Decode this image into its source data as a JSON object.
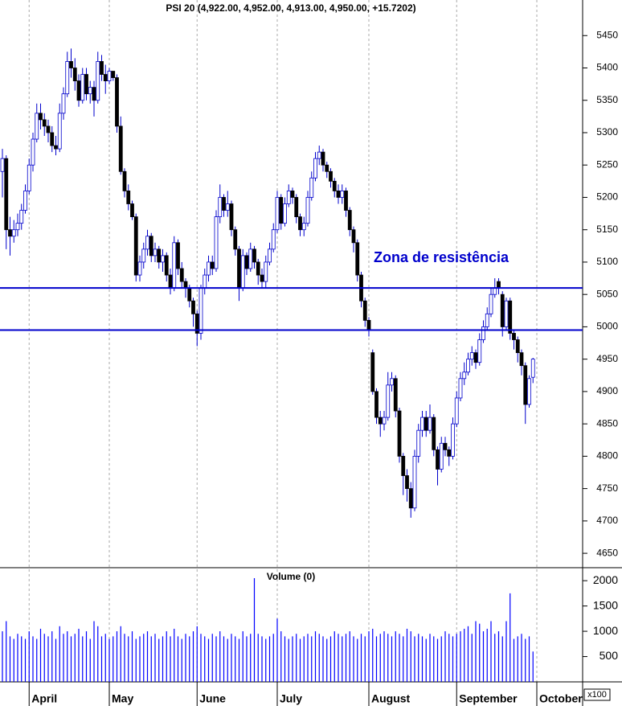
{
  "chart_data": [
    {
      "type": "candlestick",
      "title": "PSI 20 (4,922.00, 4,952.00, 4,913.00, 4,950.00, +15.7202)",
      "annotation": "Zona de resistência",
      "hlines": [
        5060,
        4995
      ],
      "hline_color": "#0000cc",
      "up_color": "#ffffff",
      "down_color": "#000000",
      "edge_color": "#0000cc",
      "ylim": [
        4629,
        5505
      ],
      "yticks": [
        4650,
        4700,
        4750,
        4800,
        4850,
        4900,
        4950,
        5000,
        5050,
        5100,
        5150,
        5200,
        5250,
        5300,
        5350,
        5400,
        5450
      ],
      "xticks": [
        {
          "value": 7,
          "label": "April"
        },
        {
          "value": 28,
          "label": "May"
        },
        {
          "value": 51,
          "label": "June"
        },
        {
          "value": 72,
          "label": "July"
        },
        {
          "value": 96,
          "label": "August"
        },
        {
          "value": 119,
          "label": "September"
        },
        {
          "value": 140,
          "label": "October"
        }
      ],
      "open": [
        5240,
        5260,
        5150,
        5140,
        5150,
        5160,
        5180,
        5210,
        5250,
        5290,
        5330,
        5320,
        5310,
        5300,
        5280,
        5275,
        5330,
        5360,
        5410,
        5400,
        5380,
        5350,
        5390,
        5360,
        5370,
        5350,
        5410,
        5390,
        5380,
        5395,
        5385,
        5310,
        5240,
        5210,
        5190,
        5170,
        5080,
        5100,
        5120,
        5140,
        5110,
        5120,
        5100,
        5110,
        5080,
        5060,
        5130,
        5090,
        5070,
        5060,
        5040,
        5020,
        4990,
        5060,
        5080,
        5100,
        5090,
        5170,
        5200,
        5180,
        5190,
        5150,
        5120,
        5060,
        5110,
        5090,
        5120,
        5100,
        5080,
        5070,
        5100,
        5120,
        5150,
        5200,
        5160,
        5190,
        5210,
        5200,
        5170,
        5150,
        5160,
        5200,
        5230,
        5260,
        5270,
        5250,
        5240,
        5225,
        5210,
        5200,
        5210,
        5180,
        5150,
        5130,
        5080,
        5040,
        5010,
        4960,
        4900,
        4860,
        4850,
        4860,
        4910,
        4920,
        4870,
        4800,
        4770,
        4750,
        4720,
        4800,
        4840,
        4860,
        4840,
        4860,
        4810,
        4780,
        4820,
        4810,
        4800,
        4850,
        4890,
        4920,
        4930,
        4950,
        4960,
        4945,
        4980,
        5000,
        5020,
        5050,
        5070,
        5050,
        5000,
        5040,
        4990,
        4980,
        4960,
        4940,
        4880,
        4922
      ],
      "high": [
        5275,
        5265,
        5170,
        5165,
        5175,
        5190,
        5220,
        5260,
        5300,
        5345,
        5345,
        5330,
        5320,
        5310,
        5295,
        5345,
        5370,
        5425,
        5430,
        5415,
        5390,
        5400,
        5400,
        5380,
        5380,
        5425,
        5420,
        5405,
        5400,
        5395,
        5390,
        5325,
        5245,
        5220,
        5195,
        5175,
        5110,
        5130,
        5150,
        5145,
        5130,
        5125,
        5120,
        5115,
        5090,
        5140,
        5135,
        5100,
        5075,
        5065,
        5045,
        5025,
        5065,
        5090,
        5110,
        5110,
        5180,
        5220,
        5205,
        5210,
        5195,
        5155,
        5125,
        5120,
        5115,
        5130,
        5125,
        5105,
        5090,
        5110,
        5130,
        5160,
        5210,
        5205,
        5200,
        5220,
        5215,
        5205,
        5175,
        5170,
        5210,
        5240,
        5270,
        5280,
        5275,
        5255,
        5245,
        5230,
        5220,
        5220,
        5215,
        5185,
        5155,
        5135,
        5085,
        5045,
        5015,
        4965,
        4905,
        4870,
        4870,
        4930,
        4930,
        4925,
        4875,
        4805,
        4780,
        4760,
        4810,
        4850,
        4870,
        4870,
        4880,
        4865,
        4815,
        4830,
        4830,
        4815,
        4860,
        4900,
        4930,
        4945,
        4960,
        4970,
        4965,
        4990,
        5010,
        5030,
        5060,
        5075,
        5075,
        5055,
        5045,
        5045,
        4995,
        4985,
        4965,
        4945,
        4925,
        4952
      ],
      "low": [
        5200,
        5120,
        5110,
        5130,
        5140,
        5150,
        5175,
        5205,
        5240,
        5285,
        5305,
        5295,
        5285,
        5270,
        5265,
        5270,
        5320,
        5355,
        5385,
        5365,
        5340,
        5345,
        5350,
        5345,
        5325,
        5345,
        5380,
        5360,
        5375,
        5380,
        5300,
        5235,
        5200,
        5180,
        5165,
        5070,
        5070,
        5090,
        5110,
        5100,
        5100,
        5090,
        5085,
        5070,
        5050,
        5055,
        5080,
        5060,
        5045,
        5030,
        5000,
        4970,
        4980,
        5050,
        5070,
        5080,
        5085,
        5160,
        5170,
        5170,
        5140,
        5110,
        5040,
        5055,
        5080,
        5085,
        5090,
        5065,
        5060,
        5060,
        5095,
        5115,
        5145,
        5150,
        5155,
        5185,
        5190,
        5160,
        5140,
        5140,
        5155,
        5195,
        5225,
        5250,
        5240,
        5230,
        5215,
        5200,
        5190,
        5190,
        5170,
        5140,
        5115,
        5070,
        5030,
        5000,
        4985,
        4895,
        4850,
        4830,
        4840,
        4855,
        4900,
        4860,
        4790,
        4740,
        4730,
        4705,
        4715,
        4790,
        4830,
        4830,
        4835,
        4800,
        4755,
        4775,
        4800,
        4785,
        4795,
        4845,
        4885,
        4910,
        4925,
        4940,
        4935,
        4940,
        4975,
        4995,
        5015,
        5045,
        5050,
        4985,
        4995,
        4980,
        4965,
        4945,
        4925,
        4850,
        4875,
        4913
      ],
      "close": [
        5260,
        5150,
        5140,
        5150,
        5160,
        5180,
        5210,
        5250,
        5290,
        5330,
        5320,
        5310,
        5300,
        5280,
        5275,
        5330,
        5360,
        5410,
        5400,
        5380,
        5350,
        5390,
        5360,
        5370,
        5350,
        5410,
        5390,
        5380,
        5395,
        5385,
        5310,
        5240,
        5210,
        5190,
        5170,
        5080,
        5100,
        5120,
        5140,
        5110,
        5120,
        5100,
        5110,
        5080,
        5060,
        5130,
        5090,
        5070,
        5060,
        5040,
        5020,
        4990,
        5060,
        5080,
        5100,
        5090,
        5170,
        5200,
        5180,
        5190,
        5150,
        5120,
        5060,
        5110,
        5090,
        5120,
        5100,
        5080,
        5070,
        5100,
        5120,
        5150,
        5200,
        5160,
        5190,
        5210,
        5200,
        5170,
        5150,
        5160,
        5200,
        5230,
        5260,
        5270,
        5250,
        5240,
        5225,
        5210,
        5200,
        5210,
        5180,
        5150,
        5130,
        5080,
        5040,
        5010,
        4995,
        4900,
        4860,
        4850,
        4860,
        4910,
        4920,
        4870,
        4800,
        4770,
        4750,
        4720,
        4800,
        4840,
        4860,
        4840,
        4860,
        4810,
        4780,
        4820,
        4810,
        4800,
        4850,
        4890,
        4920,
        4930,
        4950,
        4960,
        4945,
        4980,
        5000,
        5020,
        5050,
        5060,
        5060,
        5000,
        5040,
        4990,
        4980,
        4960,
        4940,
        4880,
        4920,
        4950
      ]
    },
    {
      "type": "bar",
      "title": "Volume (0)",
      "multiplier_label": "x100",
      "color": "#0000ff",
      "ylim": [
        0,
        2225
      ],
      "yticks": [
        500,
        1000,
        1500,
        2000
      ],
      "values": [
        1000,
        1200,
        900,
        850,
        950,
        900,
        850,
        1000,
        900,
        850,
        1050,
        950,
        900,
        1000,
        850,
        1100,
        950,
        1000,
        900,
        950,
        1050,
        900,
        1000,
        850,
        1200,
        1100,
        900,
        950,
        850,
        900,
        1000,
        1100,
        950,
        900,
        1000,
        850,
        900,
        950,
        1000,
        900,
        950,
        850,
        900,
        1000,
        900,
        1050,
        900,
        850,
        950,
        900,
        1000,
        1100,
        950,
        900,
        850,
        950,
        900,
        1000,
        900,
        850,
        950,
        900,
        850,
        1000,
        900,
        950,
        2050,
        950,
        900,
        850,
        900,
        950,
        1250,
        1000,
        900,
        850,
        900,
        950,
        850,
        900,
        950,
        900,
        1000,
        950,
        900,
        850,
        900,
        1000,
        950,
        900,
        950,
        1000,
        900,
        850,
        950,
        900,
        1000,
        1050,
        900,
        950,
        1000,
        950,
        900,
        1000,
        950,
        900,
        1050,
        1000,
        900,
        950,
        900,
        850,
        950,
        900,
        850,
        900,
        1000,
        950,
        900,
        950,
        1000,
        1050,
        1100,
        950,
        1200,
        1150,
        1000,
        1050,
        1200,
        950,
        1000,
        900,
        1200,
        1750,
        850,
        900,
        950,
        850,
        900,
        600
      ]
    }
  ]
}
